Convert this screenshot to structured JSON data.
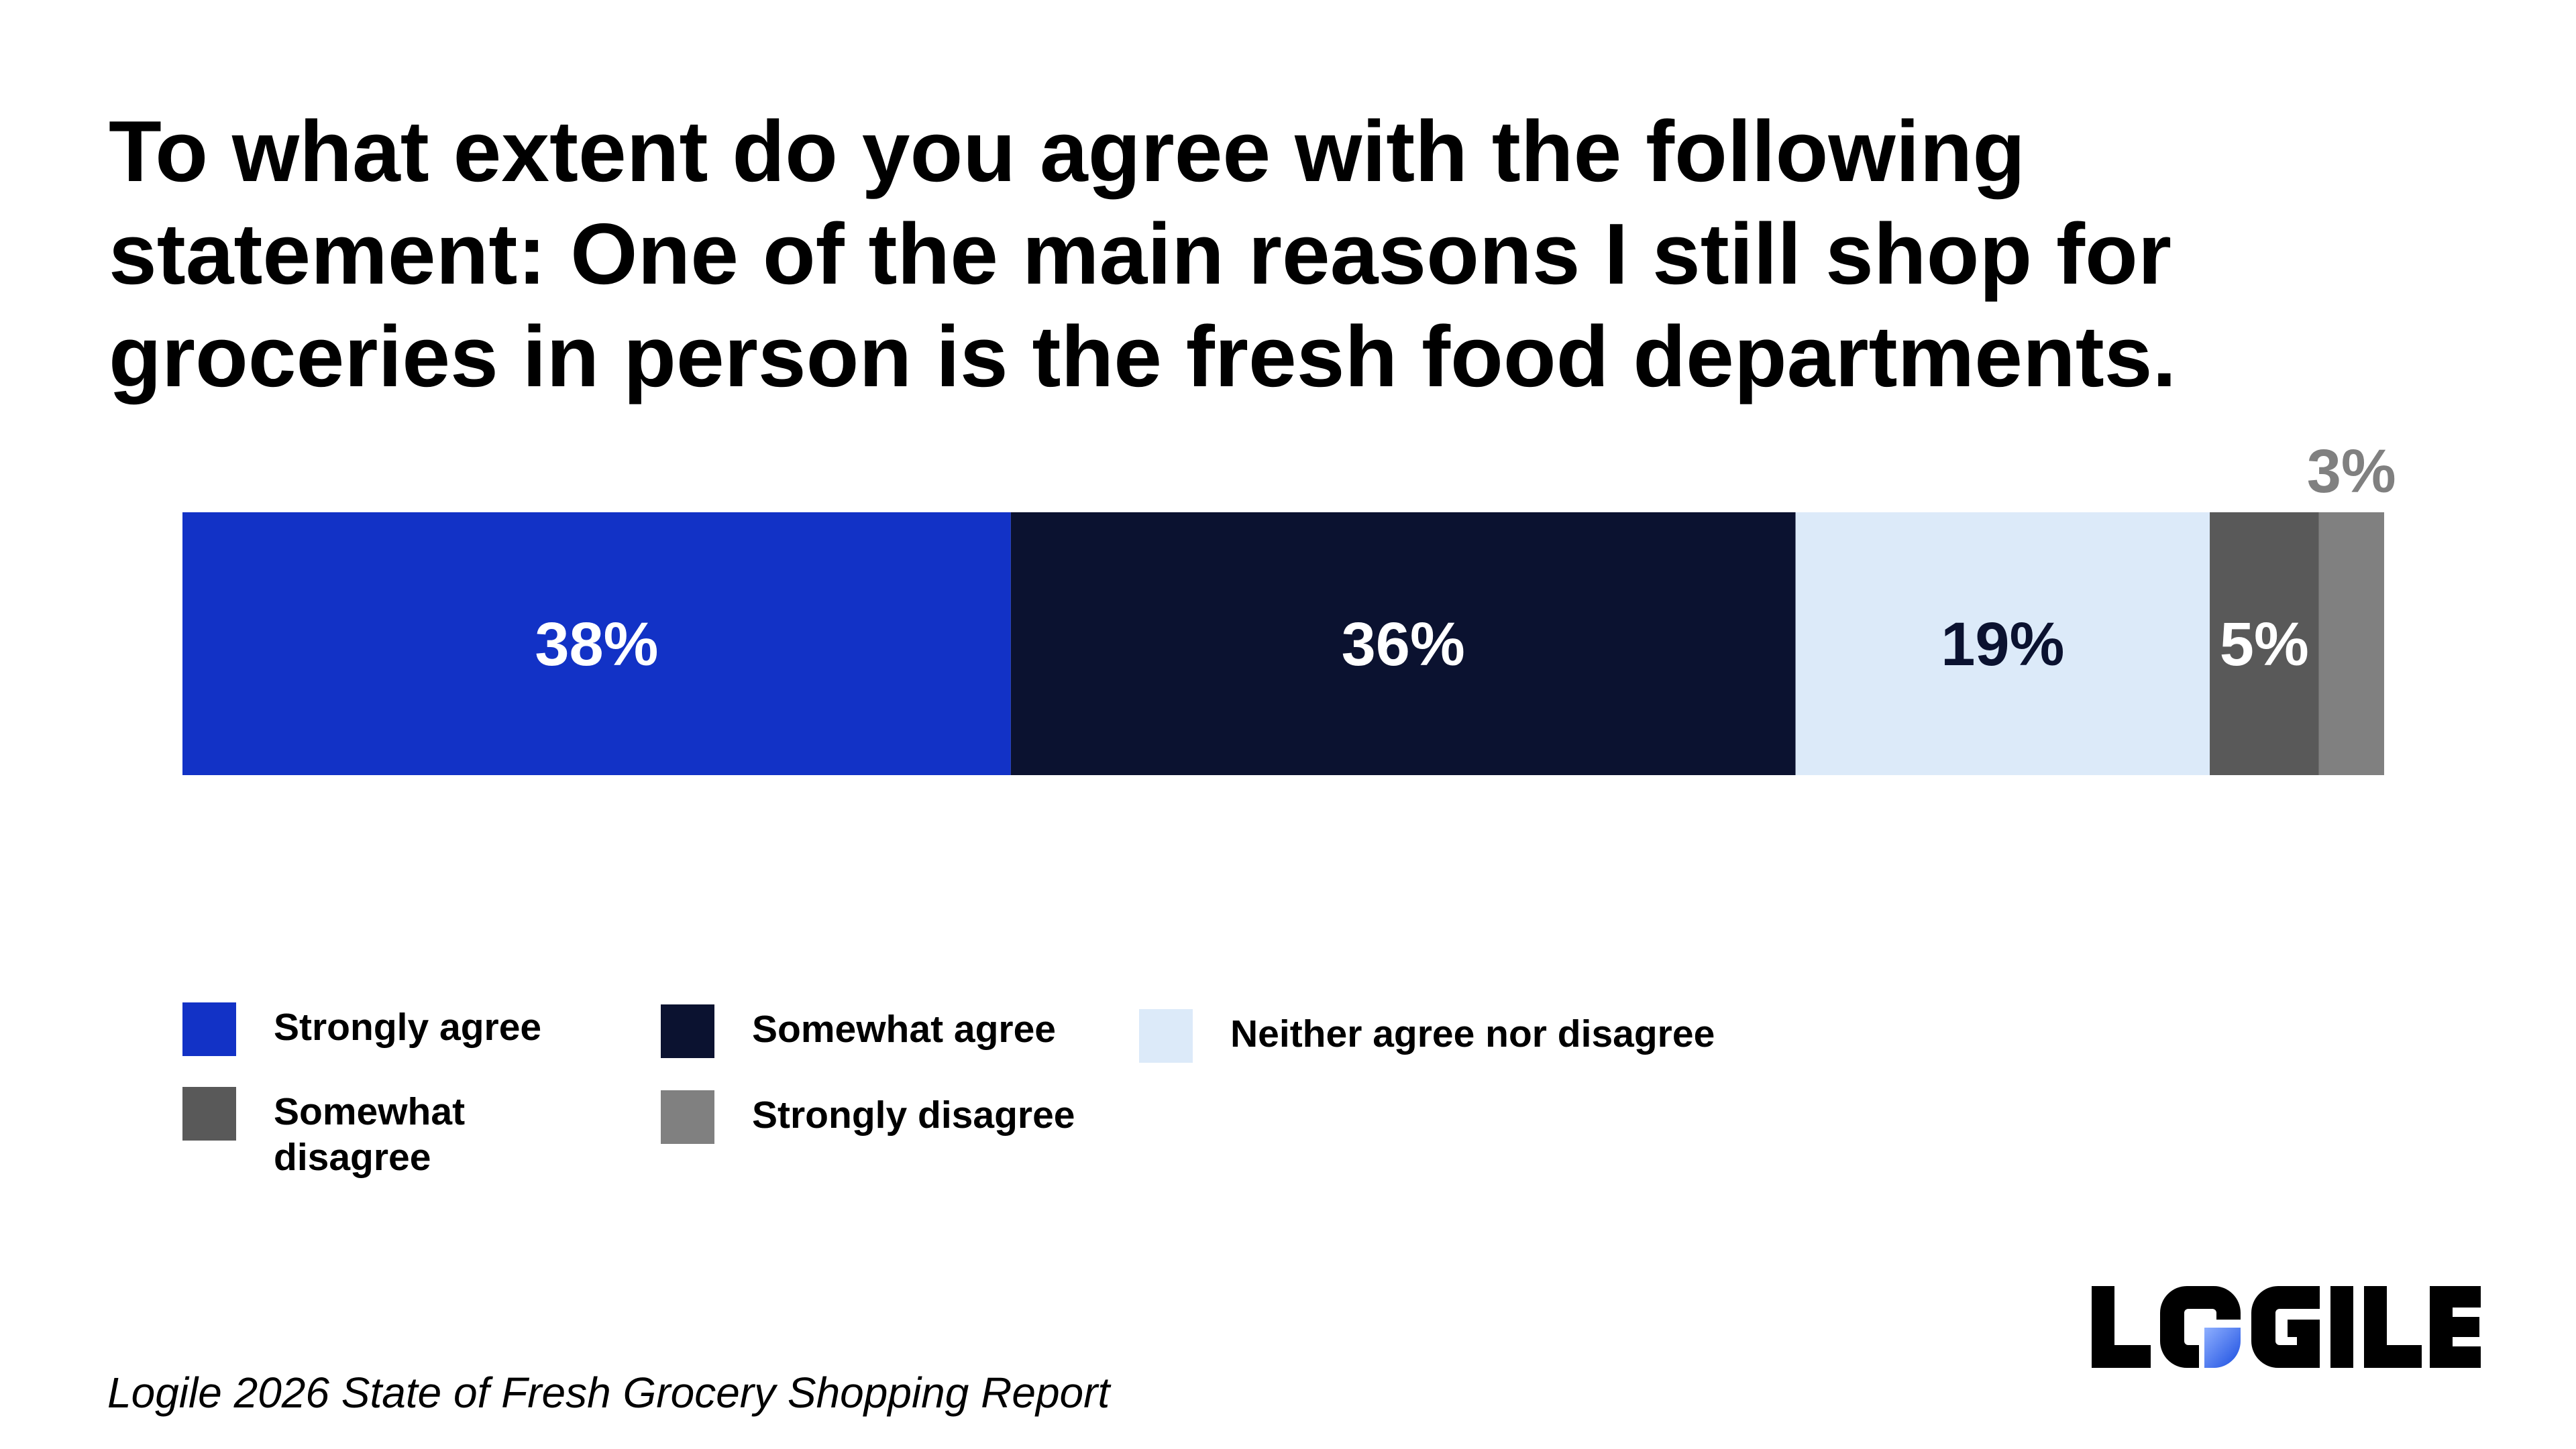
{
  "chart_data": {
    "type": "bar",
    "orientation": "horizontal-stacked-100",
    "title": "To what extent do you agree with the following statement: One of the main reasons I still shop for groceries in person is the fresh food departments.",
    "series": [
      {
        "name": "Strongly agree",
        "value": 38,
        "label": "38%",
        "color": "#1232c6",
        "label_color": "#ffffff",
        "label_position": "inside"
      },
      {
        "name": "Somewhat agree",
        "value": 36,
        "label": "36%",
        "color": "#0b1230",
        "label_color": "#ffffff",
        "label_position": "inside"
      },
      {
        "name": "Neither agree nor disagree",
        "value": 19,
        "label": "19%",
        "color": "#dceaf9",
        "label_color": "#0b1230",
        "label_position": "inside"
      },
      {
        "name": "Somewhat disagree",
        "value": 5,
        "label": "5%",
        "color": "#595959",
        "label_color": "#ffffff",
        "label_position": "inside"
      },
      {
        "name": "Strongly disagree",
        "value": 3,
        "label": "3%",
        "color": "#808080",
        "label_color": "#808080",
        "label_position": "above"
      }
    ],
    "xlim": [
      0,
      101
    ],
    "grid": false,
    "legend_position": "bottom"
  },
  "legend": {
    "items": [
      {
        "label": "Strongly agree",
        "color": "#1232c6"
      },
      {
        "label": "Somewhat agree",
        "color": "#0b1230"
      },
      {
        "label": "Neither agree nor disagree",
        "color": "#dceaf9"
      },
      {
        "label": "Somewhat disagree",
        "color": "#595959"
      },
      {
        "label": "Strongly disagree",
        "color": "#808080"
      }
    ]
  },
  "source": "Logile 2026 State of Fresh Grocery Shopping Report",
  "logo": {
    "text": "LOGILE",
    "colors": {
      "dark": "#000000",
      "accent": "#1a4de0",
      "accent_light": "#8fb0ff"
    }
  }
}
